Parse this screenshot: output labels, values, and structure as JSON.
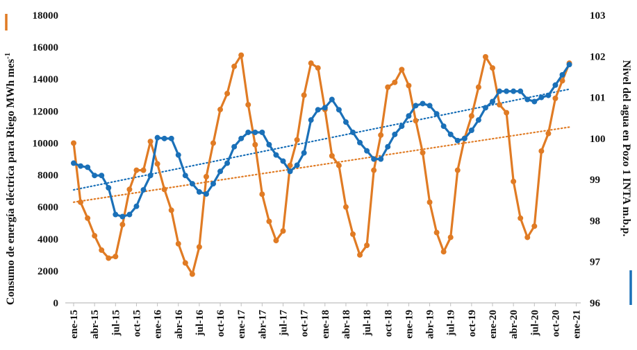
{
  "chart_data": {
    "type": "line",
    "x_tick_labels": [
      "ene-15",
      "abr-15",
      "jul-15",
      "oct-15",
      "ene-16",
      "abr-16",
      "jul-16",
      "oct-16",
      "ene-17",
      "abr-17",
      "jul-17",
      "oct-17",
      "ene-18",
      "abr-18",
      "jul-18",
      "oct-18",
      "ene-19",
      "abr-19",
      "jul-19",
      "oct-19",
      "ene-20",
      "abr-20",
      "jul-20",
      "oct-20",
      "ene-21"
    ],
    "x_months": 72,
    "y_left": {
      "label": "Consumo de energía eléctrica para Riego MWh mes",
      "label_superscript": "-1",
      "min": 0,
      "max": 18000,
      "step": 2000,
      "ticks": [
        "0",
        "2000",
        "4000",
        "6000",
        "8000",
        "10000",
        "12000",
        "14000",
        "16000",
        "18000"
      ]
    },
    "y_right": {
      "label": "Nivel del agua en Pozo 1 INTA m.b.p.",
      "min": 96,
      "max": 103,
      "step": 1,
      "ticks": [
        "96",
        "97",
        "98",
        "99",
        "100",
        "101",
        "102",
        "103"
      ]
    },
    "series": [
      {
        "id": "energy",
        "axis": "left",
        "color": "#E07B24",
        "values": [
          10000,
          6300,
          5300,
          4200,
          3300,
          2800,
          2900,
          4900,
          7100,
          8300,
          8300,
          10100,
          8700,
          7100,
          5800,
          3700,
          2500,
          1800,
          3500,
          7900,
          10000,
          12100,
          13100,
          14800,
          15500,
          12400,
          9900,
          6800,
          5100,
          3900,
          4500,
          8600,
          10200,
          13000,
          15000,
          14700,
          12100,
          9200,
          8600,
          6000,
          4300,
          3000,
          3600,
          8300,
          10500,
          13500,
          13800,
          14600,
          13600,
          11400,
          9400,
          6300,
          4400,
          3200,
          4100,
          8300,
          10300,
          11700,
          13500,
          15400,
          14700,
          12400,
          11900,
          7600,
          5300,
          4100,
          4800,
          9500,
          10600,
          12800,
          13900,
          15000
        ]
      },
      {
        "id": "water",
        "axis": "right",
        "color": "#1A70B8",
        "values": [
          99.4,
          99.33,
          99.3,
          99.1,
          99.1,
          98.8,
          98.15,
          98.1,
          98.15,
          98.35,
          98.75,
          99.1,
          100.02,
          100.0,
          100.0,
          99.6,
          99.1,
          98.9,
          98.7,
          98.65,
          98.9,
          99.2,
          99.4,
          99.8,
          100.0,
          100.15,
          100.15,
          100.15,
          99.85,
          99.6,
          99.45,
          99.2,
          99.35,
          99.65,
          100.45,
          100.7,
          100.75,
          100.95,
          100.7,
          100.4,
          100.15,
          99.9,
          99.7,
          99.5,
          99.5,
          99.8,
          100.1,
          100.3,
          100.55,
          100.8,
          100.85,
          100.8,
          100.6,
          100.3,
          100.1,
          99.95,
          100.0,
          100.2,
          100.45,
          100.75,
          100.9,
          101.15,
          101.15,
          101.15,
          101.15,
          100.95,
          100.9,
          101.0,
          101.05,
          101.3,
          101.55,
          101.8
        ]
      }
    ],
    "trendlines": [
      {
        "series": "energy",
        "style": "dotted",
        "color": "#E07B24",
        "start": 6300,
        "end": 11000
      },
      {
        "series": "water",
        "style": "dotted",
        "color": "#1A70B8",
        "start": 98.75,
        "end": 101.2
      }
    ],
    "legend": {
      "right_marker_color": "#1A70B8",
      "left_marker_color": "#E07B24"
    },
    "grid": false
  }
}
